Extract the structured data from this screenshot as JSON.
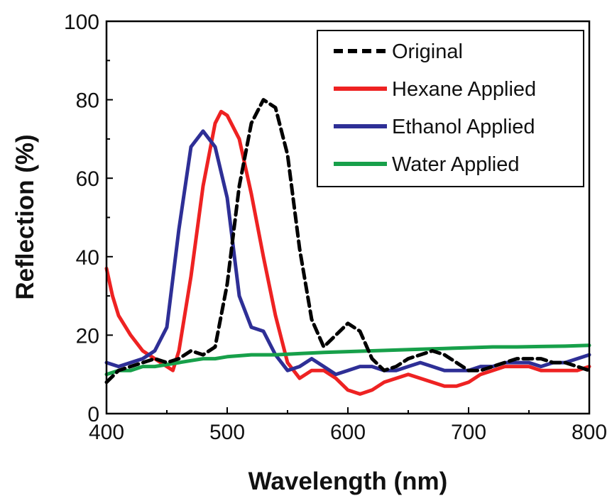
{
  "chart_data": {
    "type": "line",
    "xlabel": "Wavelength (nm)",
    "ylabel": "Reflection (%)",
    "xlim": [
      400,
      800
    ],
    "ylim": [
      0,
      100
    ],
    "xticks": [
      400,
      500,
      600,
      700,
      800
    ],
    "yticks": [
      0,
      20,
      40,
      60,
      80,
      100
    ],
    "grid": false,
    "legend_position": "top-right",
    "series": [
      {
        "name": "Original",
        "color": "#000000",
        "dash": "dashed",
        "x": [
          400,
          410,
          420,
          430,
          440,
          450,
          460,
          470,
          480,
          490,
          500,
          510,
          520,
          530,
          540,
          550,
          560,
          570,
          580,
          590,
          600,
          610,
          620,
          630,
          640,
          650,
          660,
          670,
          680,
          690,
          700,
          710,
          720,
          730,
          740,
          750,
          760,
          770,
          780,
          790,
          800
        ],
        "y": [
          8,
          11,
          12,
          13,
          14,
          13,
          14,
          16,
          15,
          17,
          33,
          58,
          74,
          80,
          78,
          66,
          42,
          24,
          17,
          20,
          23,
          21,
          14,
          11,
          12,
          14,
          15,
          16,
          15,
          13,
          11,
          11,
          12,
          13,
          14,
          14,
          14,
          13,
          13,
          12,
          11
        ]
      },
      {
        "name": "Hexane Applied",
        "color": "#ee2222",
        "dash": "solid",
        "x": [
          400,
          405,
          410,
          420,
          430,
          440,
          450,
          455,
          460,
          470,
          480,
          490,
          495,
          500,
          510,
          520,
          530,
          540,
          550,
          560,
          570,
          580,
          590,
          600,
          610,
          620,
          630,
          640,
          650,
          660,
          670,
          680,
          690,
          700,
          710,
          720,
          730,
          740,
          750,
          760,
          770,
          780,
          790,
          800
        ],
        "y": [
          37,
          30,
          25,
          20,
          16,
          14,
          12,
          11,
          16,
          35,
          58,
          74,
          77,
          76,
          70,
          56,
          40,
          25,
          13,
          9,
          11,
          11,
          9,
          6,
          5,
          6,
          8,
          9,
          10,
          9,
          8,
          7,
          7,
          8,
          10,
          11,
          12,
          12,
          12,
          11,
          11,
          11,
          11,
          12
        ]
      },
      {
        "name": "Ethanol Applied",
        "color": "#2e2f96",
        "dash": "solid",
        "x": [
          400,
          410,
          420,
          430,
          440,
          450,
          460,
          470,
          480,
          490,
          500,
          510,
          520,
          530,
          540,
          550,
          560,
          570,
          580,
          590,
          600,
          610,
          620,
          630,
          640,
          650,
          660,
          670,
          680,
          690,
          700,
          710,
          720,
          730,
          740,
          750,
          760,
          770,
          780,
          790,
          800
        ],
        "y": [
          13,
          12,
          13,
          14,
          16,
          22,
          47,
          68,
          72,
          68,
          55,
          30,
          22,
          21,
          15,
          11,
          12,
          14,
          12,
          10,
          11,
          12,
          12,
          11,
          11,
          12,
          13,
          12,
          11,
          11,
          11,
          12,
          12,
          13,
          13,
          13,
          12,
          13,
          13,
          14,
          15
        ]
      },
      {
        "name": "Water Applied",
        "color": "#17a04a",
        "dash": "solid",
        "x": [
          400,
          410,
          420,
          430,
          440,
          450,
          460,
          470,
          480,
          490,
          500,
          520,
          540,
          560,
          580,
          600,
          620,
          640,
          660,
          680,
          700,
          720,
          740,
          760,
          780,
          800
        ],
        "y": [
          10,
          11,
          11,
          12,
          12,
          12.5,
          13,
          13.5,
          14,
          14,
          14.5,
          15,
          15,
          15.3,
          15.6,
          15.8,
          16,
          16.2,
          16.4,
          16.6,
          16.8,
          17,
          17,
          17.1,
          17.2,
          17.4
        ]
      }
    ]
  }
}
